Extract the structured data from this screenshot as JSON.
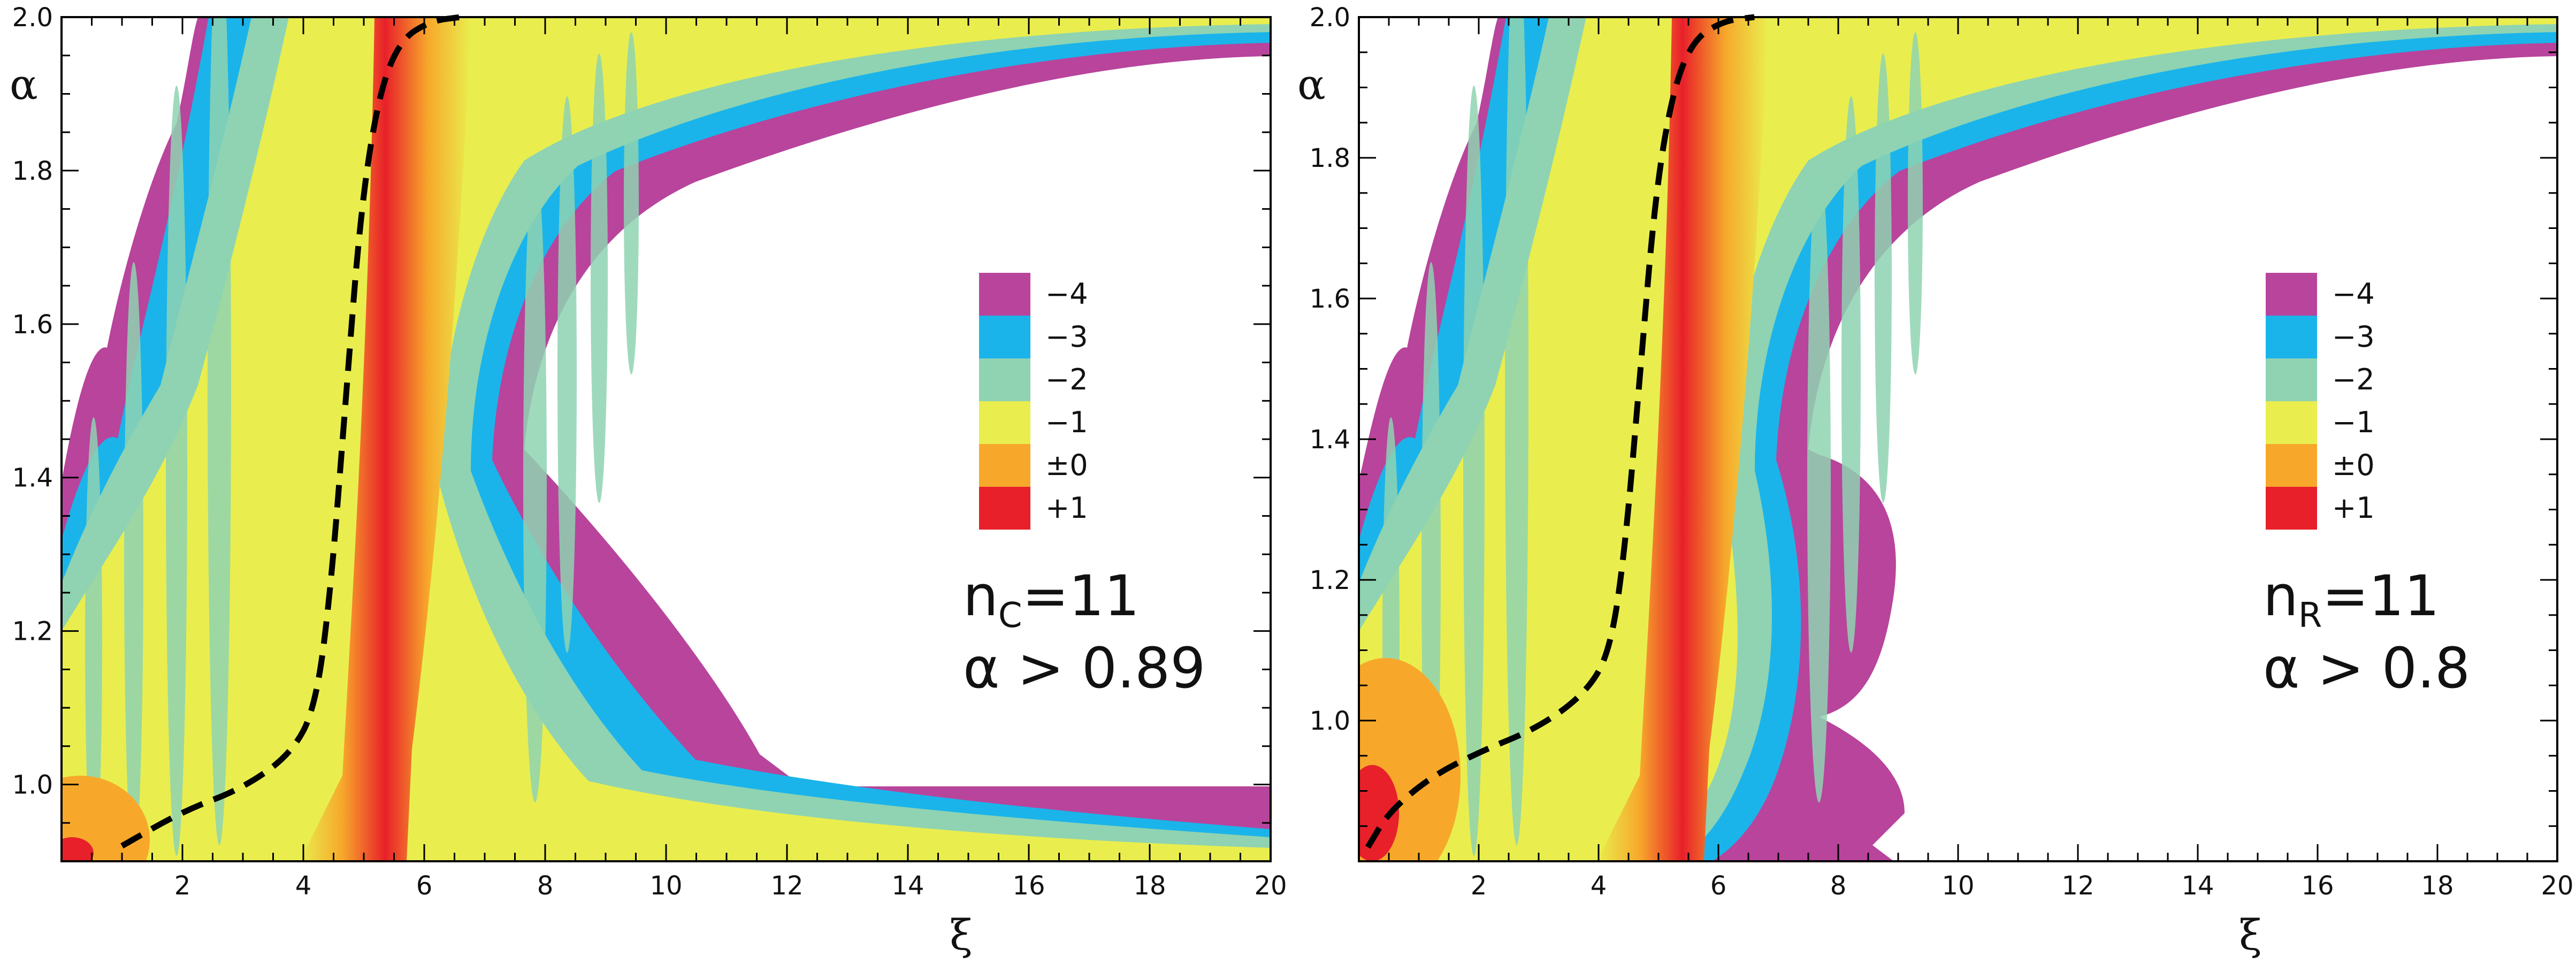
{
  "chart_data": [
    {
      "type": "heatmap",
      "panel": "left",
      "xlabel": "ξ",
      "ylabel": "α",
      "xlim": [
        0,
        20
      ],
      "ylim": [
        0.9,
        2.0
      ],
      "x_ticks": [
        2,
        4,
        6,
        8,
        10,
        12,
        14,
        16,
        18,
        20
      ],
      "x_tick_labels": [
        "2",
        "4",
        "6",
        "8",
        "10",
        "12",
        "14",
        "16",
        "18",
        "20"
      ],
      "y_ticks": [
        1.0,
        1.2,
        1.4,
        1.6,
        1.8,
        2.0
      ],
      "y_tick_labels": [
        "1.0",
        "1.2",
        "1.4",
        "1.6",
        "1.8",
        "2.0"
      ],
      "legend_title": "",
      "legend": [
        {
          "label": "−4",
          "color": "#b8449c"
        },
        {
          "label": "−3",
          "color": "#1ab4ea"
        },
        {
          "label": "−2",
          "color": "#8fd3b2"
        },
        {
          "label": "−1",
          "color": "#e9ee4e"
        },
        {
          "label": "±0",
          "color": "#f7a82b"
        },
        {
          "label": "+1",
          "color": "#e8202a"
        }
      ],
      "annotation_main": "n",
      "annotation_sub": "C",
      "annotation_value": "=11",
      "annotation_line2": "α > 0.89",
      "dashed_curve": [
        [
          1.0,
          0.92
        ],
        [
          2.0,
          0.965
        ],
        [
          3.0,
          0.995
        ],
        [
          3.8,
          1.04
        ],
        [
          4.2,
          1.1
        ],
        [
          4.45,
          1.25
        ],
        [
          4.7,
          1.5
        ],
        [
          4.95,
          1.75
        ],
        [
          5.25,
          1.9
        ],
        [
          5.6,
          1.97
        ],
        [
          6.1,
          1.995
        ],
        [
          6.6,
          2.0
        ]
      ]
    },
    {
      "type": "heatmap",
      "panel": "right",
      "xlabel": "ξ",
      "ylabel": "α",
      "xlim": [
        0,
        20
      ],
      "ylim": [
        0.8,
        2.0
      ],
      "x_ticks": [
        2,
        4,
        6,
        8,
        10,
        12,
        14,
        16,
        18,
        20
      ],
      "x_tick_labels": [
        "2",
        "4",
        "6",
        "8",
        "10",
        "12",
        "14",
        "16",
        "18",
        "20"
      ],
      "y_ticks": [
        1.0,
        1.2,
        1.4,
        1.6,
        1.8,
        2.0
      ],
      "y_tick_labels": [
        "1.0",
        "1.2",
        "1.4",
        "1.6",
        "1.8",
        "2.0"
      ],
      "legend": [
        {
          "label": "−4",
          "color": "#b8449c"
        },
        {
          "label": "−3",
          "color": "#1ab4ea"
        },
        {
          "label": "−2",
          "color": "#8fd3b2"
        },
        {
          "label": "−1",
          "color": "#e9ee4e"
        },
        {
          "label": "±0",
          "color": "#f7a82b"
        },
        {
          "label": "+1",
          "color": "#e8202a"
        }
      ],
      "annotation_main": "n",
      "annotation_sub": "R",
      "annotation_value": "=11",
      "annotation_line2": "α > 0.8",
      "dashed_curve": [
        [
          0.15,
          0.82
        ],
        [
          0.5,
          0.87
        ],
        [
          1.2,
          0.92
        ],
        [
          2.0,
          0.955
        ],
        [
          3.0,
          0.99
        ],
        [
          3.8,
          1.04
        ],
        [
          4.2,
          1.1
        ],
        [
          4.45,
          1.25
        ],
        [
          4.7,
          1.5
        ],
        [
          4.95,
          1.75
        ],
        [
          5.25,
          1.9
        ],
        [
          5.6,
          1.97
        ],
        [
          6.1,
          1.995
        ],
        [
          6.6,
          2.0
        ]
      ]
    }
  ]
}
